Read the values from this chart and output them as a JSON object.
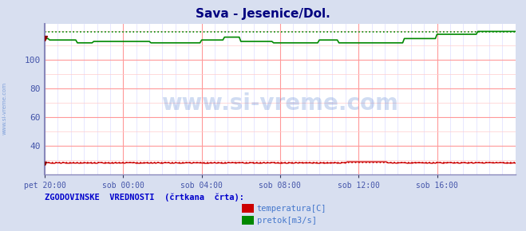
{
  "title": "Sava - Jesenice/Dol.",
  "title_color": "#000080",
  "title_fontsize": 11,
  "bg_color": "#d8dff0",
  "plot_bg_color": "#ffffff",
  "xlim": [
    0,
    288
  ],
  "ylim": [
    20,
    125
  ],
  "yticks": [
    40,
    60,
    80,
    100
  ],
  "yticks_minor": [
    20,
    30,
    40,
    50,
    60,
    70,
    80,
    90,
    100,
    110,
    120
  ],
  "xtick_labels": [
    "pet 20:00",
    "sob 00:00",
    "sob 04:00",
    "sob 08:00",
    "sob 12:00",
    "sob 16:00"
  ],
  "xtick_positions": [
    0,
    48,
    96,
    144,
    192,
    240
  ],
  "temp_value": 28.0,
  "temp_hist_value": 28.5,
  "pretok_hist_value": 119.5,
  "temp_color": "#cc0000",
  "pretok_color": "#008800",
  "grid_color_major": "#ff9999",
  "grid_color_minor": "#ffcccc",
  "grid_color_minor2": "#ddddff",
  "left_spine_color": "#8888bb",
  "bottom_spine_color": "#8888bb",
  "watermark": "www.si-vreme.com",
  "watermark_color": "#4477cc",
  "watermark_alpha": 0.25,
  "side_watermark_color": "#4477cc",
  "legend_title": "ZGODOVINSKE  VREDNOSTI  (črtkana  črta):",
  "legend_title_color": "#0000cc",
  "legend_items": [
    "temperatura[C]",
    "pretok[m3/s]"
  ],
  "legend_colors": [
    "#cc0000",
    "#008800"
  ],
  "n_points": 289
}
